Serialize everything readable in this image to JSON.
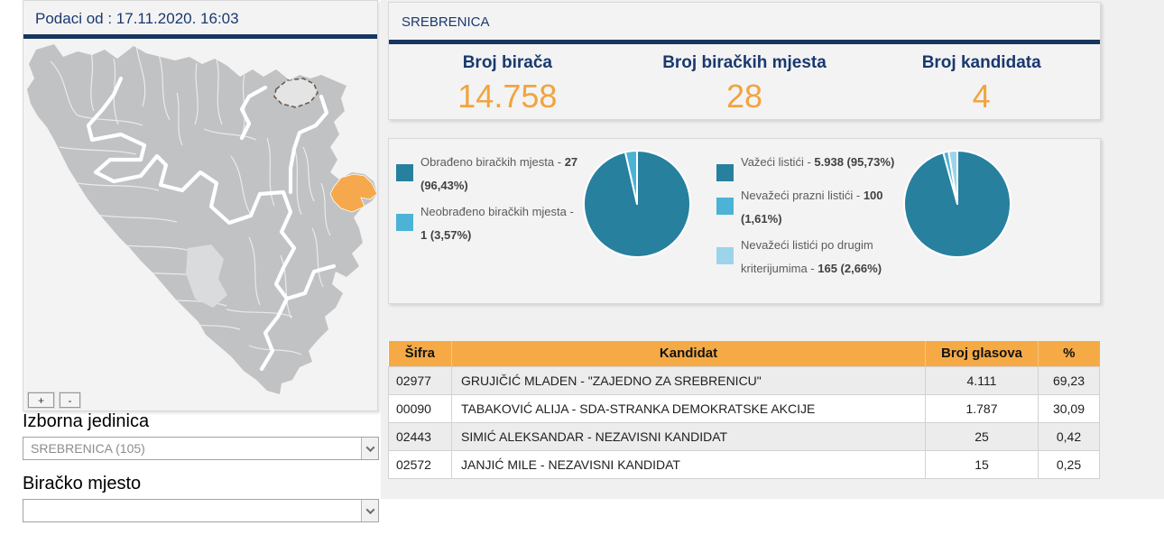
{
  "data_timestamp_header": "Podaci od : 17.11.2020. 16:03",
  "map": {
    "zoom_in": "+",
    "zoom_out": "-"
  },
  "filters": {
    "region_label": "Izborna jedinica",
    "region_value": "SREBRENICA (105)",
    "polling_place_label": "Biračko mjesto",
    "polling_place_value": ""
  },
  "summary": {
    "title": "SREBRENICA",
    "stats": [
      {
        "label": "Broj birača",
        "value": "14.758"
      },
      {
        "label": "Broj biračkih mjesta",
        "value": "28"
      },
      {
        "label": "Broj kandidata",
        "value": "4"
      }
    ]
  },
  "chart_data": [
    {
      "type": "pie",
      "name": "obradjenost-birackih-mjesta",
      "legend_position": "left",
      "slices": [
        {
          "label": "Obrađeno biračkih mjesta",
          "value": 27,
          "value_text": "27",
          "pct": 96.43,
          "pct_text": "96,43%",
          "color": "#27809e"
        },
        {
          "label": "Neobrađeno biračkih mjesta",
          "value": 1,
          "value_text": "1",
          "pct": 3.57,
          "pct_text": "3,57%",
          "color": "#4cb2d6"
        }
      ]
    },
    {
      "type": "pie",
      "name": "listici",
      "legend_position": "left",
      "slices": [
        {
          "label": "Važeći listići",
          "value": 5938,
          "value_text": "5.938",
          "pct": 95.73,
          "pct_text": "95,73%",
          "color": "#27809e"
        },
        {
          "label": "Nevažeći prazni listići",
          "value": 100,
          "value_text": "100",
          "pct": 1.61,
          "pct_text": "1,61%",
          "color": "#4cb2d6"
        },
        {
          "label": "Nevažeći listići po drugim kriterijumima",
          "value": 165,
          "value_text": "165",
          "pct": 2.66,
          "pct_text": "2,66%",
          "color": "#9dd4ea"
        }
      ]
    }
  ],
  "results_table": {
    "columns": [
      "Šifra",
      "Kandidat",
      "Broj glasova",
      "%"
    ],
    "rows": [
      {
        "code": "02977",
        "candidate": "GRUJIČIĆ MLADEN - \"ZAJEDNO ZA SREBRENICU\"",
        "votes": "4.111",
        "pct": "69,23"
      },
      {
        "code": "00090",
        "candidate": "TABAKOVIĆ ALIJA - SDA-STRANKA DEMOKRATSKE AKCIJE",
        "votes": "1.787",
        "pct": "30,09"
      },
      {
        "code": "02443",
        "candidate": "SIMIĆ ALEKSANDAR - NEZAVISNI KANDIDAT",
        "votes": "25",
        "pct": "0,42"
      },
      {
        "code": "02572",
        "candidate": "JANJIĆ MILE - NEZAVISNI KANDIDAT",
        "votes": "15",
        "pct": "0,25"
      }
    ]
  },
  "colors": {
    "navy": "#19396e",
    "navy_bar": "#16365f",
    "accent_orange": "#f1a43e",
    "table_header_orange": "#f6aa45",
    "pie_teal": "#27809e",
    "pie_blue": "#4cb2d6",
    "pie_light_blue": "#9dd4ea",
    "map_region_highlight": "#f5a94c",
    "map_fill": "#c0c2c4"
  }
}
